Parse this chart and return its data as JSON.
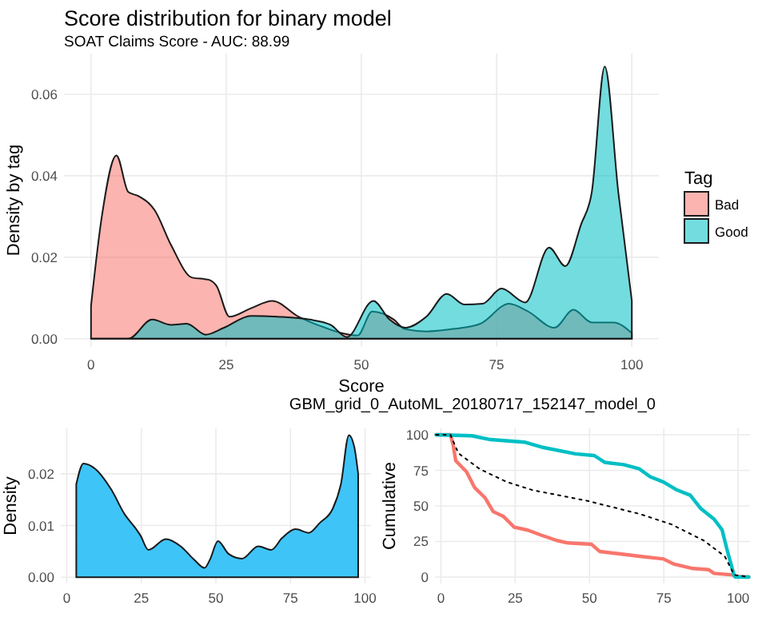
{
  "chart_data": [
    {
      "type": "area",
      "title": "Score distribution for binary model",
      "subtitle": "SOAT Claims Score - AUC: 88.99",
      "xlabel": "Score",
      "ylabel": "Density by tag",
      "legend_title": "Tag",
      "legend": "right",
      "grid": true,
      "annotations": [
        "GBM_grid_0_AutoML_20180717_152147_model_0"
      ],
      "xlim": [
        -5,
        105
      ],
      "xticks": [
        0,
        25,
        50,
        75,
        100
      ],
      "ylim": [
        -0.002,
        0.07
      ],
      "yticks": [
        {
          "value": 0,
          "label": "0.00"
        },
        {
          "value": 0.02,
          "label": "0.02"
        },
        {
          "value": 0.04,
          "label": "0.04"
        },
        {
          "value": 0.06,
          "label": "0.06"
        }
      ],
      "series": [
        {
          "name": "Bad",
          "color": "#f8766d",
          "x": [
            0,
            2,
            4.7,
            6.9,
            8.8,
            11.8,
            14.8,
            18.7,
            21.7,
            23.2,
            25.6,
            29.6,
            33.5,
            38.4,
            43.3,
            46.3,
            49.3,
            52,
            56,
            58,
            62,
            67,
            72,
            77.3,
            80.8,
            85.7,
            89.2,
            92.6,
            96.6,
            100
          ],
          "values": [
            0.008,
            0.03,
            0.045,
            0.036,
            0.035,
            0.0315,
            0.023,
            0.015,
            0.0145,
            0.013,
            0.0054,
            0.0075,
            0.0093,
            0.0054,
            0.0027,
            0.0014,
            0.0008,
            0.0067,
            0.0047,
            0.0024,
            0.0018,
            0.0024,
            0.0037,
            0.0086,
            0.0067,
            0.0027,
            0.0071,
            0.004,
            0.004,
            0.0014
          ]
        },
        {
          "name": "Good",
          "color": "#00bfc4",
          "x": [
            0,
            6.9,
            11.3,
            14.8,
            17.7,
            21.2,
            24.6,
            29.6,
            34.5,
            40.4,
            44.3,
            47.3,
            52.2,
            55.2,
            58.1,
            62,
            65.8,
            69,
            72.4,
            75.9,
            80.3,
            84.7,
            87.7,
            90.6,
            92.6,
            95,
            97.5,
            100
          ],
          "values": [
            0,
            0,
            0.0047,
            0.0034,
            0.0037,
            0.001,
            0.0027,
            0.0056,
            0.0054,
            0.0047,
            0.0034,
            0.0004,
            0.0093,
            0.0047,
            0.0027,
            0.0054,
            0.011,
            0.0084,
            0.0086,
            0.0123,
            0.0089,
            0.0224,
            0.0178,
            0.028,
            0.036,
            0.0668,
            0.036,
            0.0093
          ]
        }
      ]
    },
    {
      "type": "area",
      "ylabel": "Density",
      "grid": true,
      "xlim": [
        -2,
        102
      ],
      "xticks": [
        0,
        25,
        50,
        75,
        100
      ],
      "ylim": [
        -0.0012,
        0.0288
      ],
      "yticks": [
        {
          "value": 0,
          "label": "0.00"
        },
        {
          "value": 0.01,
          "label": "0.01"
        },
        {
          "value": 0.02,
          "label": "0.02"
        }
      ],
      "series": [
        {
          "color": "#3fc4f7",
          "x": [
            3.2,
            5.6,
            9.5,
            14.9,
            19.4,
            22.9,
            24.7,
            27.4,
            33.2,
            38.2,
            42.7,
            46.2,
            48,
            50.7,
            54.3,
            58.8,
            64.2,
            68.6,
            72.2,
            76.7,
            81.2,
            84.8,
            89.2,
            91.9,
            94.6,
            96.4,
            97.7
          ],
          "values": [
            0.018,
            0.022,
            0.021,
            0.017,
            0.0122,
            0.0096,
            0.0081,
            0.0053,
            0.0074,
            0.006,
            0.0034,
            0.0018,
            0.0034,
            0.007,
            0.0045,
            0.0036,
            0.006,
            0.0053,
            0.0076,
            0.0093,
            0.0086,
            0.0105,
            0.0133,
            0.018,
            0.0275,
            0.0252,
            0.02
          ]
        }
      ]
    },
    {
      "type": "line",
      "ylabel": "Cumulative",
      "grid": true,
      "xlim": [
        -2,
        104
      ],
      "xticks": [
        0,
        25,
        50,
        75,
        100
      ],
      "ylim": [
        -4.5,
        104.5
      ],
      "yticks": [
        0,
        25,
        50,
        75,
        100
      ],
      "series": [
        {
          "color": "#f8766d",
          "line_style": "solid",
          "x": [
            -1.6,
            3.2,
            4.1,
            5,
            8.6,
            11.3,
            14.9,
            17.6,
            21.1,
            24.7,
            29.2,
            33.7,
            39,
            42.7,
            50.7,
            53.4,
            59.7,
            66.8,
            74.9,
            78.5,
            84.8,
            90.1,
            91.9,
            98.2,
            99,
            103.6
          ],
          "values": [
            100,
            100,
            93,
            81.7,
            74,
            63,
            55.6,
            46,
            42.5,
            35,
            33,
            29.5,
            25.7,
            24,
            23,
            18,
            16.4,
            14.6,
            12.7,
            9,
            6,
            5.2,
            2.6,
            1.5,
            0.4,
            0
          ]
        },
        {
          "color": "#00bfc4",
          "line_style": "solid",
          "x": [
            -1.6,
            5.9,
            10.4,
            16.7,
            23.8,
            28.3,
            34.6,
            45.3,
            51.6,
            55.2,
            61.5,
            66.8,
            70.4,
            74.9,
            79.4,
            83.9,
            87.5,
            91.9,
            94.6,
            96.4,
            98.6,
            99,
            103.6
          ],
          "values": [
            100,
            99.6,
            99.3,
            96.6,
            95.5,
            94.8,
            91,
            86.6,
            85.4,
            80.6,
            79,
            76,
            70.5,
            66.8,
            61.2,
            57.5,
            48,
            40.7,
            33.2,
            18.3,
            1.5,
            0,
            0
          ]
        },
        {
          "color": "#000000",
          "line_style": "dotted",
          "x": [
            -1.6,
            3.2,
            5.9,
            13,
            22,
            31,
            49,
            66.8,
            77.6,
            88.4,
            95.5,
            98.7,
            103.6
          ],
          "values": [
            100,
            100,
            87,
            76,
            67,
            61,
            53.7,
            44.4,
            37,
            25.7,
            14.6,
            1.5,
            0
          ]
        }
      ]
    }
  ]
}
